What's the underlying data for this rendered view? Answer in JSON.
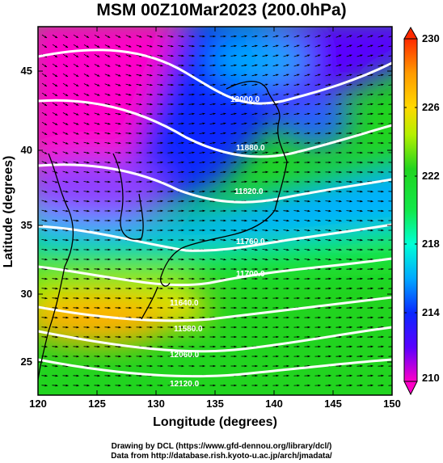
{
  "title": "MSM 00Z10Mar2023 (200.0hPa)",
  "xlabel": "Longitude (degrees)",
  "ylabel": "Latitude  (degrees)",
  "x_ticks": [
    "120",
    "125",
    "130",
    "135",
    "140",
    "145",
    "150"
  ],
  "y_ticks": [
    "25",
    "30",
    "35",
    "40",
    "45"
  ],
  "colorbar_ticks": [
    "210",
    "214",
    "218",
    "222",
    "226",
    "230"
  ],
  "contour_labels": [
    "11580.0",
    "11640.0",
    "11700.0",
    "11760.0",
    "11820.0",
    "11880.0",
    "12000.0",
    "12060.0",
    "12120.0"
  ],
  "credits": {
    "line1": "Drawing by DCL (https://www.gfd-dennou.org/library/dcl/)",
    "line2": "Data from http://database.rish.kyoto-u.ac.jp/arch/jmadata/"
  },
  "chart_data": {
    "type": "heatmap",
    "title": "MSM 00Z10Mar2023 (200.0hPa)",
    "xlabel": "Longitude (degrees)",
    "ylabel": "Latitude  (degrees)",
    "xlim": [
      120,
      150
    ],
    "ylim": [
      22.5,
      47.5
    ],
    "colorbar_range": [
      210,
      230
    ],
    "overlays": [
      "wind vectors",
      "geopotential height contours",
      "coastlines"
    ],
    "colors": {
      "210": "#ff00c8",
      "212": "#5a00ff",
      "214": "#0a28ff",
      "216": "#00a8ff",
      "218": "#00ffd6",
      "220": "#12e84a",
      "222": "#21d41f",
      "224": "#b4f000",
      "226": "#ffd800",
      "228": "#ff9a00",
      "230": "#ff2a00"
    }
  }
}
